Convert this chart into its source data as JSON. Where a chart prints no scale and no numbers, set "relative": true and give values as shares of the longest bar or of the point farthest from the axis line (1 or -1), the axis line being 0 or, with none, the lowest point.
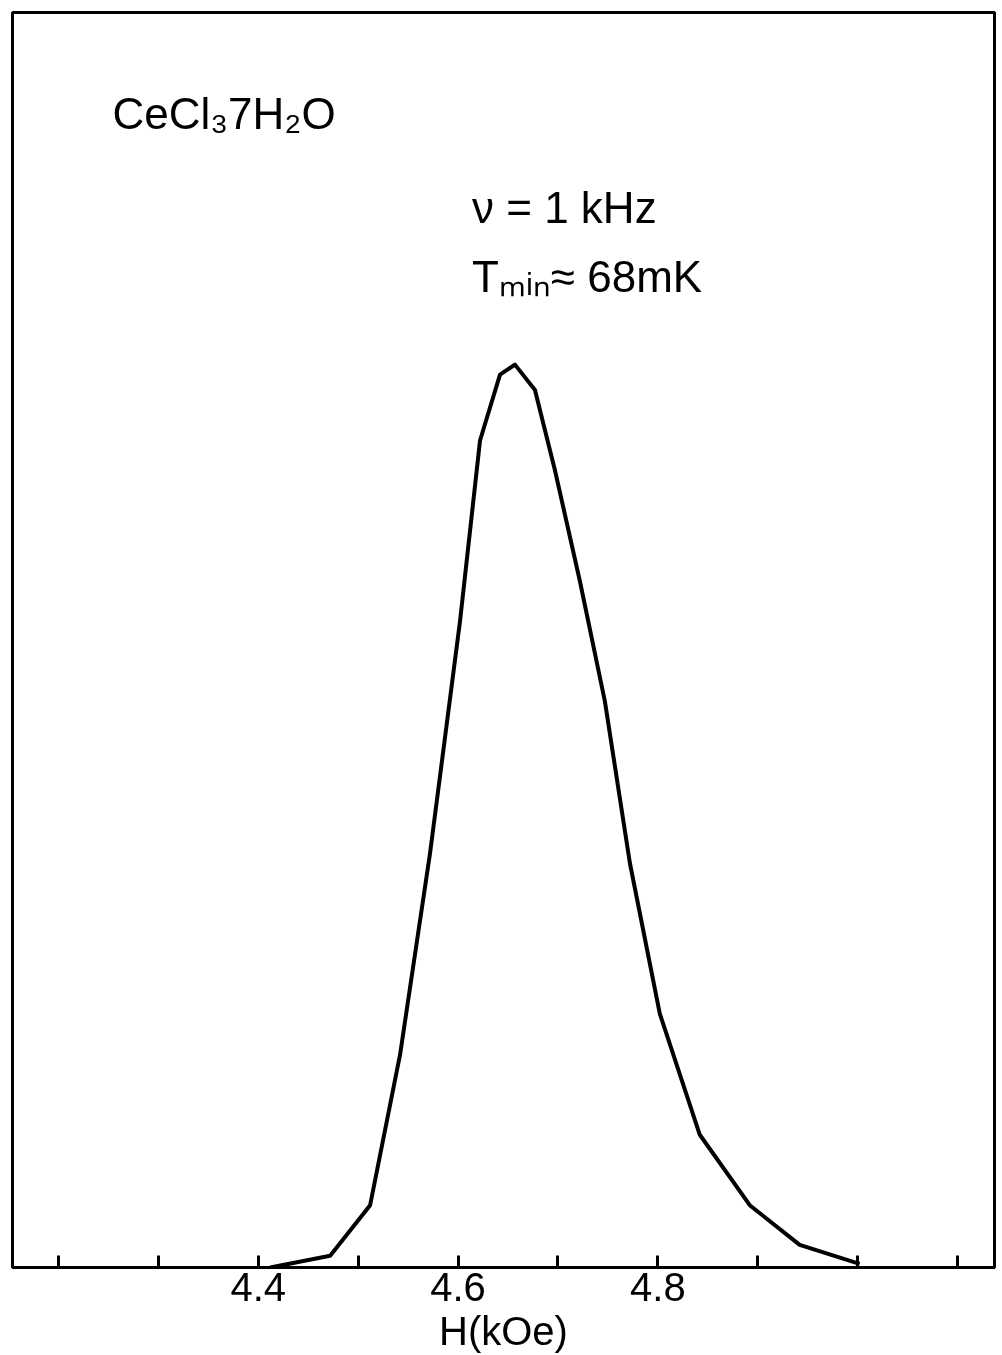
{
  "chart_data": {
    "type": "line",
    "relative": true,
    "xlabel": "H(kOe)",
    "color": "#000000",
    "annotations": [
      "CeCl₃7H₂O",
      "ν = 1 kHz",
      "Tₘᵢₙ≈ 68mK"
    ],
    "x": [
      4.412,
      4.472,
      4.512,
      4.542,
      4.572,
      4.602,
      4.622,
      4.642,
      4.657,
      4.677,
      4.697,
      4.722,
      4.747,
      4.772,
      4.802,
      4.842,
      4.892,
      4.942,
      5.002
    ],
    "values": [
      0,
      0.013,
      0.069,
      0.236,
      0.459,
      0.716,
      0.916,
      0.989,
      1,
      0.972,
      0.883,
      0.76,
      0.627,
      0.448,
      0.281,
      0.147,
      0.069,
      0.025,
      0.004
    ],
    "xlim": [
      4.154,
      5.137
    ],
    "xticks": [
      {
        "value": 4.2,
        "label": null
      },
      {
        "value": 4.3,
        "label": null
      },
      4.4,
      {
        "value": 4.5,
        "label": null
      },
      4.6,
      {
        "value": 4.7,
        "label": null
      },
      4.8,
      {
        "value": 4.9,
        "label": null
      },
      {
        "value": 5.0,
        "label": null
      },
      {
        "value": 5.1,
        "label": null
      }
    ],
    "grid": false,
    "tick_labels": "x",
    "marker": "none",
    "line_style": "solid"
  }
}
